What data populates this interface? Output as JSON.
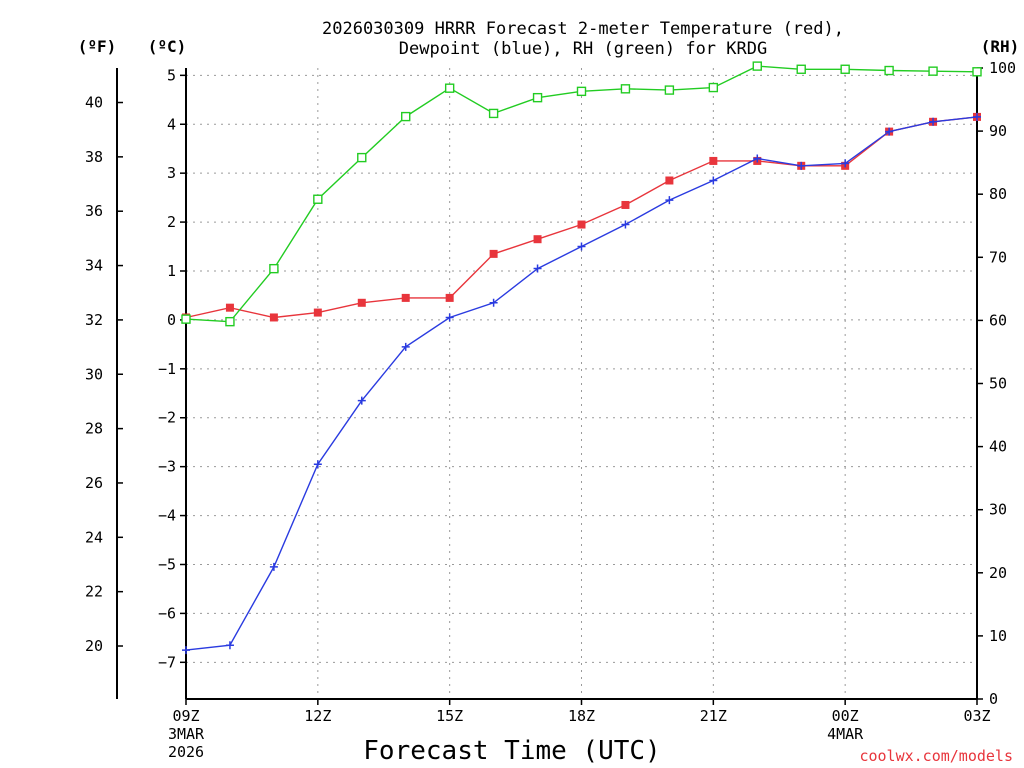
{
  "chart_data": {
    "type": "line",
    "title_line1": "2026030309 HRRR Forecast 2-meter Temperature (red),",
    "title_line2": "Dewpoint (blue), RH (green) for KRDG",
    "unit_f": "(ºF)",
    "unit_c": "(ºC)",
    "unit_rh": "(RH)",
    "xlabel": "Forecast Time (UTC)",
    "credit": "coolwx.com/models",
    "x_hours": [
      0,
      1,
      2,
      3,
      4,
      5,
      6,
      7,
      8,
      9,
      10,
      11,
      12,
      13,
      14,
      15,
      16,
      17,
      18
    ],
    "x_range": [
      0,
      18
    ],
    "x_ticks": [
      {
        "hour": 0,
        "label": "09Z",
        "sub1": "3MAR",
        "sub2": "2026"
      },
      {
        "hour": 3,
        "label": "12Z"
      },
      {
        "hour": 6,
        "label": "15Z"
      },
      {
        "hour": 9,
        "label": "18Z"
      },
      {
        "hour": 12,
        "label": "21Z"
      },
      {
        "hour": 15,
        "label": "00Z",
        "sub1": "4MAR"
      },
      {
        "hour": 18,
        "label": "03Z"
      }
    ],
    "ylim_c": [
      -7.75,
      5.15
    ],
    "ylim_f_label_range": [
      20,
      40
    ],
    "ylim_rh": [
      0,
      100
    ],
    "c_ticks": [
      "5",
      "4",
      "3",
      "2",
      "1",
      "0",
      "−1",
      "−2",
      "−3",
      "−4",
      "−5",
      "−6",
      "−7"
    ],
    "f_ticks": [
      "40",
      "38",
      "36",
      "34",
      "32",
      "30",
      "28",
      "26",
      "24",
      "22",
      "20"
    ],
    "rh_ticks": [
      "100",
      "90",
      "80",
      "70",
      "60",
      "50",
      "40",
      "30",
      "20",
      "10",
      "0"
    ],
    "series": [
      {
        "name": "Temperature",
        "axis": "c",
        "color": "#e8353c",
        "marker": "filled-square",
        "values": [
          0.05,
          0.25,
          0.05,
          0.15,
          0.35,
          0.45,
          0.45,
          1.35,
          1.65,
          1.95,
          2.35,
          2.85,
          3.25,
          3.25,
          3.15,
          3.15,
          3.85,
          4.05,
          4.15
        ]
      },
      {
        "name": "Dewpoint",
        "axis": "c",
        "color": "#2a3be0",
        "marker": "plus",
        "values": [
          -6.75,
          -6.65,
          -5.05,
          -2.95,
          -1.65,
          -0.55,
          0.05,
          0.35,
          1.05,
          1.5,
          1.95,
          2.45,
          2.85,
          3.3,
          3.15,
          3.2,
          3.85,
          4.05,
          4.15
        ]
      },
      {
        "name": "RH",
        "axis": "rh",
        "color": "#22cc22",
        "marker": "open-square",
        "values": [
          60.2,
          59.8,
          68.2,
          79.2,
          85.8,
          92.3,
          96.8,
          92.8,
          95.3,
          96.3,
          96.7,
          96.5,
          96.9,
          100.3,
          99.8,
          99.8,
          99.6,
          99.5,
          99.4
        ]
      }
    ]
  }
}
